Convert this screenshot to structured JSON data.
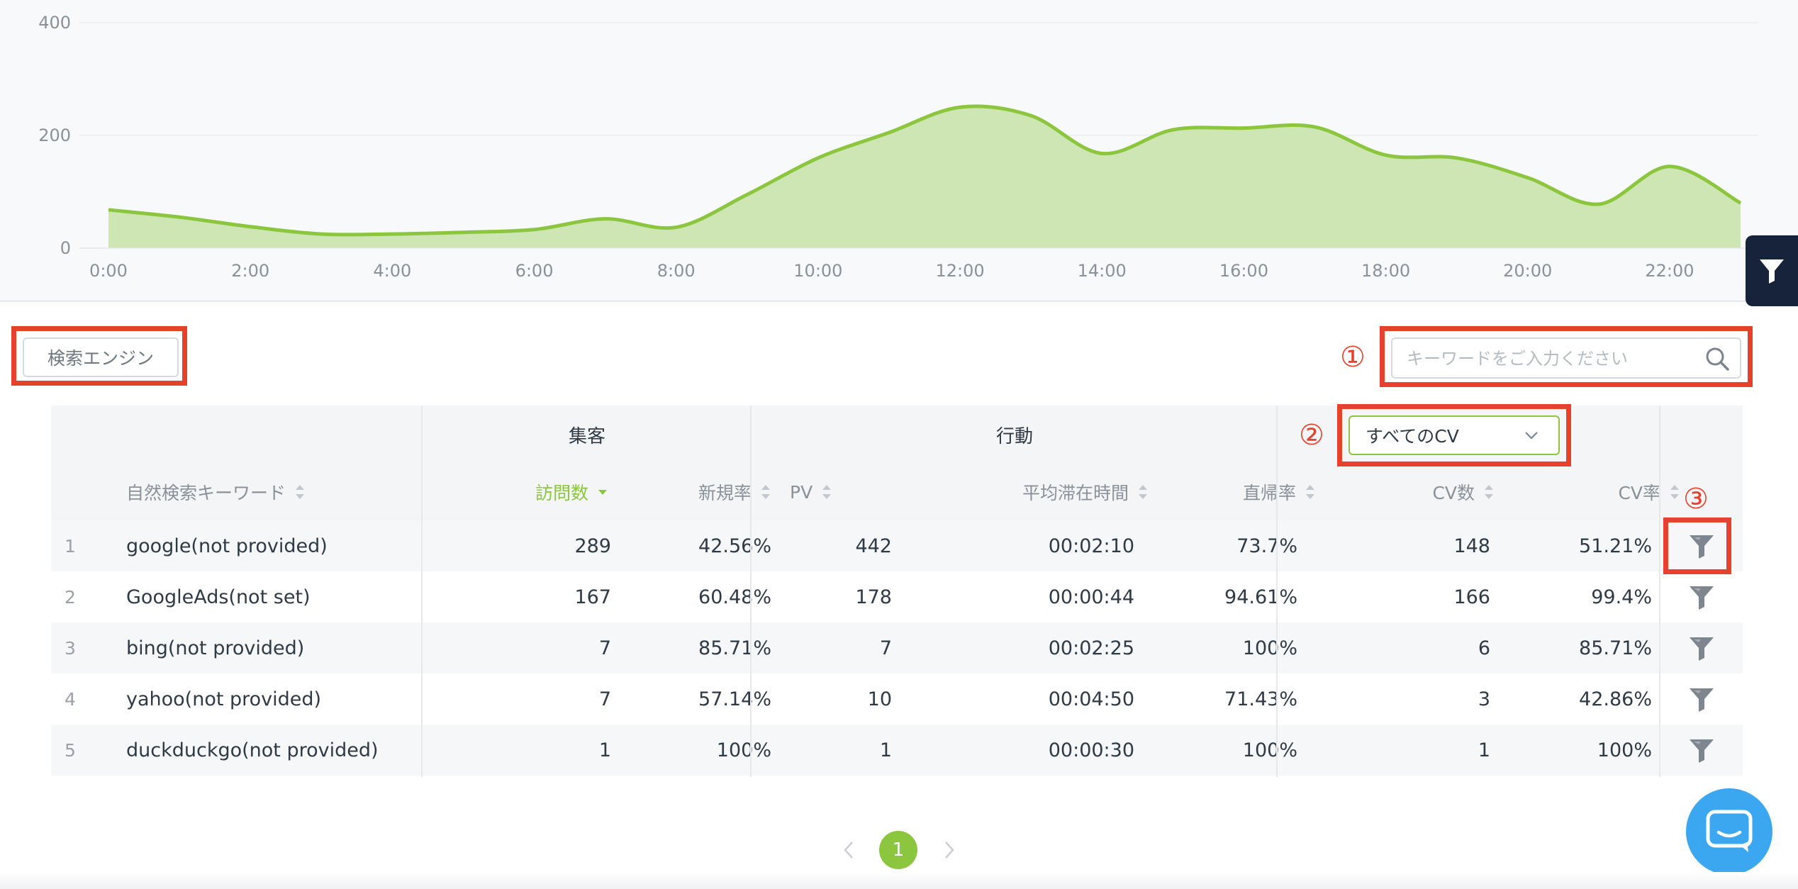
{
  "chart": {
    "type": "area",
    "y_ticks": [
      "400",
      "200",
      "0"
    ],
    "x_ticks": [
      "0:00",
      "2:00",
      "4:00",
      "6:00",
      "8:00",
      "10:00",
      "12:00",
      "14:00",
      "16:00",
      "18:00",
      "20:00",
      "22:00"
    ],
    "fill_color": "#cde6b4",
    "line_color": "#8cc63f"
  },
  "chart_data": {
    "type": "area",
    "x": [
      0,
      1,
      2,
      3,
      4,
      5,
      6,
      7,
      8,
      9,
      10,
      11,
      12,
      13,
      14,
      15,
      16,
      17,
      18,
      19,
      20,
      21,
      22,
      23
    ],
    "series": [
      {
        "values": [
          68,
          55,
          38,
          25,
          25,
          28,
          33,
          52,
          37,
          95,
          160,
          205,
          250,
          235,
          168,
          210,
          213,
          215,
          165,
          160,
          125,
          78,
          145,
          80
        ]
      }
    ],
    "ylim": [
      0,
      400
    ],
    "grid": true
  },
  "toolbar": {
    "engine_button": "検索エンジン",
    "search_placeholder": "キーワードをご入力ください",
    "marker_1": "①",
    "marker_2": "②",
    "marker_3": "③"
  },
  "cv_select": {
    "selected": "すべてのCV"
  },
  "table": {
    "groups": {
      "acquisition": "集客",
      "behavior": "行動"
    },
    "columns": {
      "keyword": "自然検索キーワード",
      "visits": "訪問数",
      "new_rate": "新規率",
      "pv": "PV",
      "avg_time": "平均滞在時間",
      "bounce": "直帰率",
      "cv": "CV数",
      "cv_rate": "CV率"
    },
    "rows": [
      {
        "idx": "1",
        "keyword": "google(not provided)",
        "visits": "289",
        "new_rate": "42.56%",
        "pv": "442",
        "avg_time": "00:02:10",
        "bounce": "73.7%",
        "cv": "148",
        "cv_rate": "51.21%"
      },
      {
        "idx": "2",
        "keyword": "GoogleAds(not set)",
        "visits": "167",
        "new_rate": "60.48%",
        "pv": "178",
        "avg_time": "00:00:44",
        "bounce": "94.61%",
        "cv": "166",
        "cv_rate": "99.4%"
      },
      {
        "idx": "3",
        "keyword": "bing(not provided)",
        "visits": "7",
        "new_rate": "85.71%",
        "pv": "7",
        "avg_time": "00:02:25",
        "bounce": "100%",
        "cv": "6",
        "cv_rate": "85.71%"
      },
      {
        "idx": "4",
        "keyword": "yahoo(not provided)",
        "visits": "7",
        "new_rate": "57.14%",
        "pv": "10",
        "avg_time": "00:04:50",
        "bounce": "71.43%",
        "cv": "3",
        "cv_rate": "42.86%"
      },
      {
        "idx": "5",
        "keyword": "duckduckgo(not provided)",
        "visits": "1",
        "new_rate": "100%",
        "pv": "1",
        "avg_time": "00:00:30",
        "bounce": "100%",
        "cv": "1",
        "cv_rate": "100%"
      }
    ]
  },
  "pagination": {
    "current": "1"
  },
  "icons": {
    "filter_tab": "funnel-icon",
    "search": "search-icon",
    "select": "chevron-down-icon",
    "row_filter": "funnel-icon",
    "prev": "chevron-left-icon",
    "next": "chevron-right-icon",
    "chat": "chat-icon"
  },
  "colors": {
    "accent_green": "#8cc63f",
    "annotation_red": "#e8412b",
    "dark_tab": "#16233a",
    "chat_blue": "#3aa7f0"
  }
}
